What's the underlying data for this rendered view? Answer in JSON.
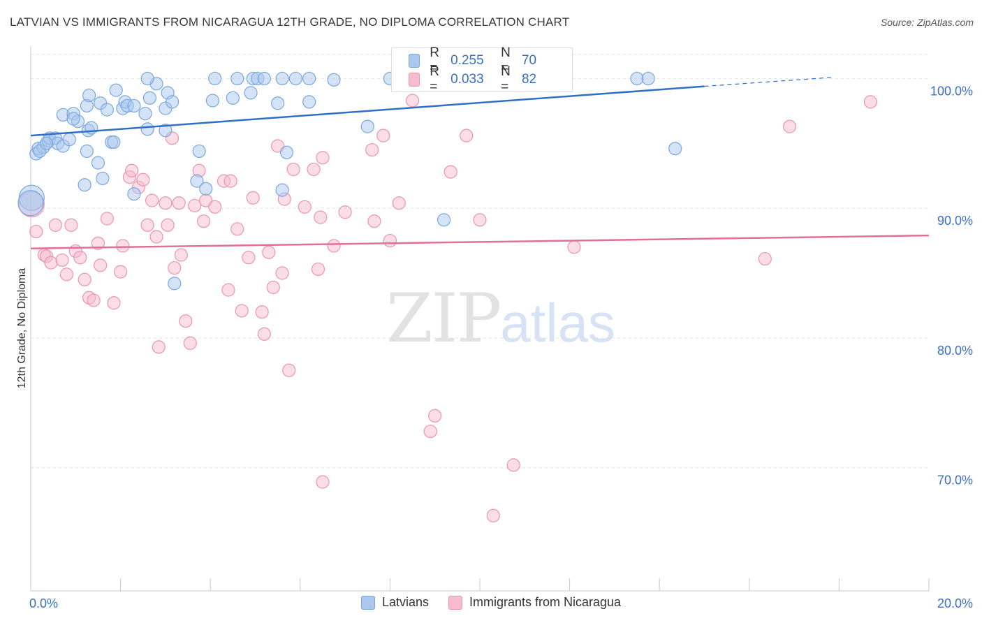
{
  "title": "LATVIAN VS IMMIGRANTS FROM NICARAGUA 12TH GRADE, NO DIPLOMA CORRELATION CHART",
  "source": "Source: ZipAtlas.com",
  "watermark": {
    "zip": "ZIP",
    "atlas": "atlas"
  },
  "legend": {
    "row1": {
      "r_label": "R =",
      "r_value": "0.255",
      "n_label": "N =",
      "n_value": "70"
    },
    "row2": {
      "r_label": "R =",
      "r_value": "0.033",
      "n_label": "N =",
      "n_value": "82"
    }
  },
  "colors": {
    "latvians_fill": "#aac8ee",
    "latvians_stroke": "#7ba7de",
    "latvians_line": "#2f6fc9",
    "nicaragua_fill": "#f6bccd",
    "nicaragua_stroke": "#eb95b0",
    "nicaragua_line": "#e0709a",
    "tick_label": "#3a6fc4",
    "grid": "#e3e3e3"
  },
  "chart_data": {
    "type": "scatter",
    "ylabel": "12th Grade, No Diploma",
    "xlim": [
      0,
      20
    ],
    "ylim": [
      60.5,
      102.5
    ],
    "x_tick_labels": [
      "0.0%",
      "20.0%"
    ],
    "y_ticks": [
      70,
      80,
      90,
      100
    ],
    "y_tick_labels": [
      "70.0%",
      "80.0%",
      "90.0%",
      "100.0%"
    ],
    "grid": true,
    "legend_position": "top-center",
    "series": [
      {
        "name": "Latvians",
        "trend": {
          "x0": 0,
          "y0": 95.6,
          "x1": 15,
          "y1": 99.4,
          "dashed_to_x": 17.9,
          "dashed_to_y": 100.1
        },
        "points": [
          [
            0.12,
            94.2
          ],
          [
            0.17,
            94.6
          ],
          [
            0.28,
            94.7
          ],
          [
            0.4,
            95.2
          ],
          [
            0.42,
            95.4
          ],
          [
            0.55,
            95.4
          ],
          [
            0.6,
            95.0
          ],
          [
            0.72,
            94.8
          ],
          [
            0.86,
            95.3
          ],
          [
            0.72,
            97.2
          ],
          [
            0.95,
            97.3
          ],
          [
            1.05,
            96.7
          ],
          [
            1.28,
            96.0
          ],
          [
            1.35,
            96.2
          ],
          [
            1.25,
            97.9
          ],
          [
            0.95,
            96.9
          ],
          [
            1.3,
            98.7
          ],
          [
            1.55,
            98.1
          ],
          [
            1.7,
            97.6
          ],
          [
            1.9,
            99.1
          ],
          [
            2.05,
            97.7
          ],
          [
            2.1,
            98.2
          ],
          [
            2.15,
            97.9
          ],
          [
            2.3,
            97.9
          ],
          [
            2.55,
            97.3
          ],
          [
            2.65,
            98.5
          ],
          [
            2.8,
            99.6
          ],
          [
            3.0,
            97.7
          ],
          [
            3.05,
            98.9
          ],
          [
            3.15,
            98.2
          ],
          [
            2.6,
            96.1
          ],
          [
            3.0,
            96.0
          ],
          [
            2.6,
            100.0
          ],
          [
            4.1,
            100.0
          ],
          [
            4.6,
            100.0
          ],
          [
            4.95,
            100.0
          ],
          [
            5.05,
            100.0
          ],
          [
            5.2,
            100.0
          ],
          [
            5.6,
            100.0
          ],
          [
            5.9,
            100.0
          ],
          [
            6.2,
            100.0
          ],
          [
            6.75,
            99.9
          ],
          [
            4.05,
            98.3
          ],
          [
            4.5,
            98.5
          ],
          [
            4.9,
            98.9
          ],
          [
            5.5,
            98.1
          ],
          [
            6.2,
            98.2
          ],
          [
            8.0,
            100.0
          ],
          [
            13.5,
            100.0
          ],
          [
            13.75,
            100.0
          ],
          [
            7.5,
            96.3
          ],
          [
            1.25,
            94.4
          ],
          [
            1.5,
            93.5
          ],
          [
            1.8,
            95.1
          ],
          [
            1.85,
            95.1
          ],
          [
            1.6,
            92.3
          ],
          [
            1.2,
            91.8
          ],
          [
            2.3,
            91.1
          ],
          [
            3.7,
            92.1
          ],
          [
            3.9,
            91.5
          ],
          [
            3.75,
            94.4
          ],
          [
            5.7,
            94.3
          ],
          [
            5.6,
            91.4
          ],
          [
            9.2,
            89.1
          ],
          [
            14.35,
            94.6
          ],
          [
            3.2,
            84.2
          ],
          [
            0.02,
            90.8
          ],
          [
            0.0,
            90.4
          ],
          [
            0.2,
            94.4
          ],
          [
            0.35,
            95.0
          ]
        ]
      },
      {
        "name": "Immigrants from Nicaragua",
        "trend": {
          "x0": 0,
          "y0": 86.9,
          "x1": 20,
          "y1": 87.9
        },
        "points": [
          [
            0.02,
            90.3
          ],
          [
            0.12,
            88.2
          ],
          [
            0.3,
            86.4
          ],
          [
            0.35,
            86.3
          ],
          [
            0.45,
            85.8
          ],
          [
            0.55,
            88.7
          ],
          [
            0.7,
            86.0
          ],
          [
            0.8,
            84.9
          ],
          [
            0.9,
            88.7
          ],
          [
            1.0,
            86.7
          ],
          [
            1.1,
            86.2
          ],
          [
            1.2,
            84.5
          ],
          [
            1.3,
            83.1
          ],
          [
            1.4,
            82.9
          ],
          [
            1.5,
            87.3
          ],
          [
            1.55,
            85.6
          ],
          [
            1.7,
            89.2
          ],
          [
            1.85,
            82.7
          ],
          [
            2.0,
            85.1
          ],
          [
            2.05,
            87.1
          ],
          [
            2.2,
            92.4
          ],
          [
            2.25,
            92.9
          ],
          [
            2.4,
            91.6
          ],
          [
            2.5,
            92.2
          ],
          [
            2.6,
            88.7
          ],
          [
            2.7,
            90.6
          ],
          [
            2.8,
            87.8
          ],
          [
            2.85,
            79.3
          ],
          [
            3.0,
            90.4
          ],
          [
            3.05,
            88.7
          ],
          [
            3.3,
            90.4
          ],
          [
            3.35,
            86.4
          ],
          [
            3.2,
            85.4
          ],
          [
            3.45,
            81.3
          ],
          [
            3.55,
            79.6
          ],
          [
            3.65,
            90.2
          ],
          [
            3.75,
            92.9
          ],
          [
            3.85,
            89.0
          ],
          [
            3.9,
            90.6
          ],
          [
            4.1,
            90.1
          ],
          [
            4.3,
            92.1
          ],
          [
            4.45,
            92.1
          ],
          [
            4.4,
            83.7
          ],
          [
            4.6,
            88.4
          ],
          [
            4.7,
            82.1
          ],
          [
            4.85,
            86.2
          ],
          [
            4.95,
            90.8
          ],
          [
            5.15,
            82.0
          ],
          [
            5.2,
            80.3
          ],
          [
            5.3,
            86.6
          ],
          [
            5.4,
            83.9
          ],
          [
            5.5,
            94.8
          ],
          [
            5.6,
            85.0
          ],
          [
            5.65,
            90.7
          ],
          [
            5.75,
            77.5
          ],
          [
            5.85,
            93.0
          ],
          [
            6.1,
            90.1
          ],
          [
            6.3,
            93.0
          ],
          [
            6.45,
            89.3
          ],
          [
            6.5,
            93.9
          ],
          [
            6.4,
            85.3
          ],
          [
            6.5,
            68.9
          ],
          [
            6.75,
            87.1
          ],
          [
            7.0,
            89.7
          ],
          [
            7.6,
            94.5
          ],
          [
            7.65,
            89.0
          ],
          [
            7.85,
            95.6
          ],
          [
            8.0,
            87.5
          ],
          [
            8.2,
            90.4
          ],
          [
            8.5,
            98.3
          ],
          [
            8.9,
            72.8
          ],
          [
            9.0,
            74.0
          ],
          [
            9.35,
            92.8
          ],
          [
            9.7,
            95.6
          ],
          [
            10.0,
            89.1
          ],
          [
            10.3,
            66.3
          ],
          [
            10.75,
            70.2
          ],
          [
            12.1,
            87.0
          ],
          [
            16.35,
            86.1
          ],
          [
            16.9,
            96.3
          ],
          [
            18.7,
            98.2
          ],
          [
            3.15,
            95.4
          ]
        ]
      }
    ]
  }
}
